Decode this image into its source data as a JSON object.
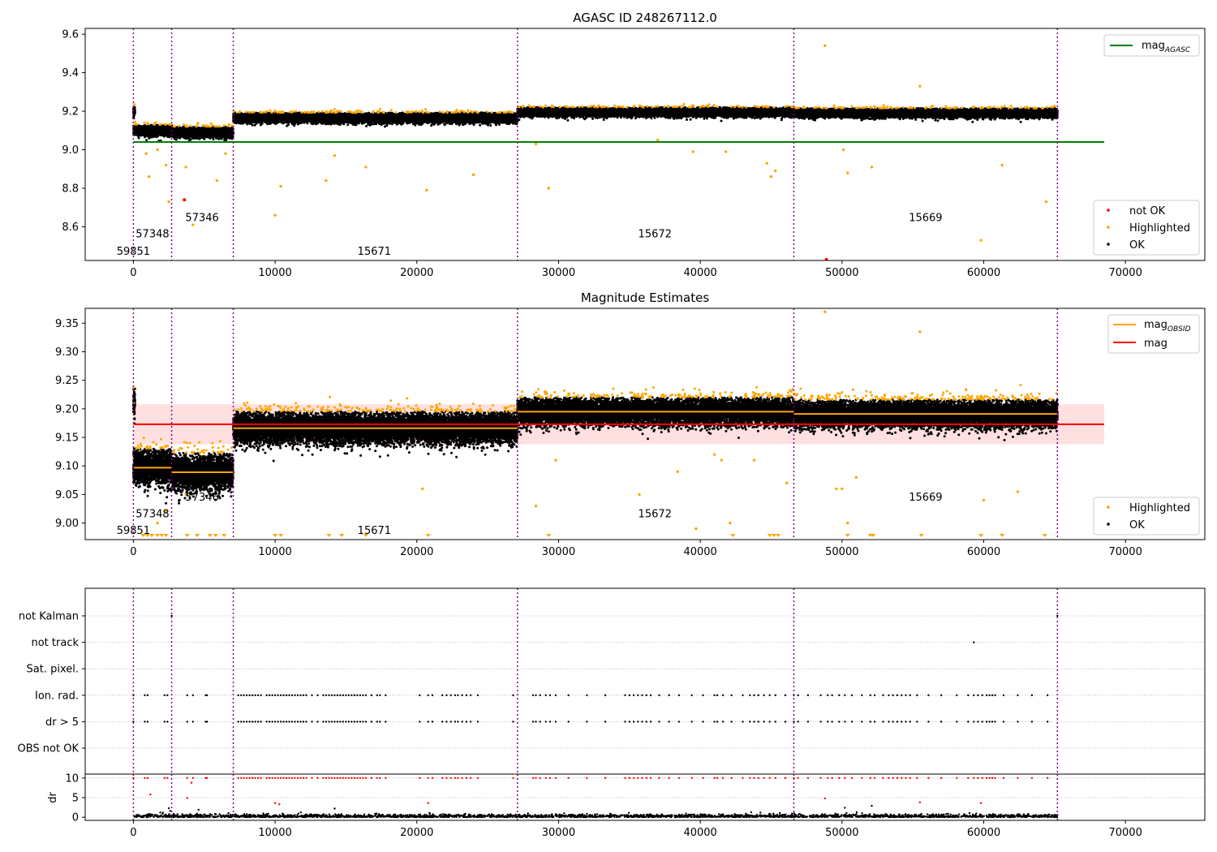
{
  "chart_data": [
    {
      "id": "top",
      "type": "scatter",
      "title": "AGASC ID 248267112.0",
      "xlim": [
        -3400,
        75600
      ],
      "ylim": [
        8.425,
        9.63
      ],
      "xticks": [
        0,
        10000,
        20000,
        30000,
        40000,
        50000,
        60000,
        70000
      ],
      "yticks": [
        8.6,
        8.8,
        9.0,
        9.2,
        9.4,
        9.6
      ],
      "ytick_labels": [
        "8.6",
        "8.8",
        "9.0",
        "9.2",
        "9.4",
        "9.6"
      ],
      "obsid_boundaries": [
        0,
        2700,
        7050,
        27100,
        46600,
        65200
      ],
      "obsid_labels": [
        {
          "text": "59851",
          "x": 0,
          "y": 8.455
        },
        {
          "text": "57348",
          "x": 1350,
          "y": 8.545
        },
        {
          "text": "57346",
          "x": 4850,
          "y": 8.63
        },
        {
          "text": "15671",
          "x": 17000,
          "y": 8.455
        },
        {
          "text": "15672",
          "x": 36800,
          "y": 8.545
        },
        {
          "text": "15669",
          "x": 55900,
          "y": 8.63
        }
      ],
      "reference_line": {
        "name": "mag",
        "subscript": "AGASC",
        "y": 9.04,
        "x": [
          0,
          68500
        ],
        "color": "#008000"
      },
      "segments": [
        {
          "x": [
            0,
            120
          ],
          "center": 9.2,
          "spread": 0.012
        },
        {
          "x": [
            0,
            2700
          ],
          "center": 9.1,
          "spread": 0.013
        },
        {
          "x": [
            2700,
            7050
          ],
          "center": 9.09,
          "spread": 0.013
        },
        {
          "x": [
            7050,
            27100
          ],
          "center": 9.165,
          "spread": 0.012
        },
        {
          "x": [
            27100,
            46600
          ],
          "center": 9.195,
          "spread": 0.011
        },
        {
          "x": [
            46600,
            65200
          ],
          "center": 9.19,
          "spread": 0.011
        }
      ],
      "not_ok": [
        {
          "x": 3600,
          "y": 8.74
        },
        {
          "x": 48900,
          "y": 8.43
        }
      ],
      "highlighted_outliers": [
        {
          "x": 900,
          "y": 8.98
        },
        {
          "x": 1100,
          "y": 8.86
        },
        {
          "x": 1700,
          "y": 9.0
        },
        {
          "x": 2300,
          "y": 8.92
        },
        {
          "x": 2500,
          "y": 8.73
        },
        {
          "x": 3700,
          "y": 8.91
        },
        {
          "x": 4200,
          "y": 8.61
        },
        {
          "x": 5900,
          "y": 8.84
        },
        {
          "x": 6500,
          "y": 8.98
        },
        {
          "x": 10000,
          "y": 8.66
        },
        {
          "x": 10400,
          "y": 8.81
        },
        {
          "x": 13600,
          "y": 8.84
        },
        {
          "x": 14200,
          "y": 8.97
        },
        {
          "x": 16400,
          "y": 8.91
        },
        {
          "x": 20700,
          "y": 8.79
        },
        {
          "x": 24000,
          "y": 8.87
        },
        {
          "x": 28400,
          "y": 9.03
        },
        {
          "x": 29300,
          "y": 8.8
        },
        {
          "x": 37000,
          "y": 9.05
        },
        {
          "x": 39500,
          "y": 8.99
        },
        {
          "x": 41800,
          "y": 8.99
        },
        {
          "x": 44700,
          "y": 8.93
        },
        {
          "x": 45000,
          "y": 8.86
        },
        {
          "x": 45300,
          "y": 8.89
        },
        {
          "x": 48800,
          "y": 9.54
        },
        {
          "x": 50100,
          "y": 9.0
        },
        {
          "x": 50400,
          "y": 8.88
        },
        {
          "x": 52100,
          "y": 8.91
        },
        {
          "x": 55500,
          "y": 9.33
        },
        {
          "x": 59800,
          "y": 8.53
        },
        {
          "x": 61300,
          "y": 8.92
        },
        {
          "x": 64400,
          "y": 8.73
        }
      ],
      "legend": {
        "top": [
          {
            "label": "mag",
            "subscript": "AGASC",
            "kind": "line",
            "color": "#008000"
          }
        ],
        "bottom": [
          {
            "label": "not OK",
            "kind": "dot",
            "color": "#ff0000"
          },
          {
            "label": "Highlighted",
            "kind": "dot",
            "color": "#ffa500"
          },
          {
            "label": "OK",
            "kind": "dot",
            "color": "#000000"
          }
        ]
      }
    },
    {
      "id": "middle",
      "type": "scatter",
      "title": "Magnitude Estimates",
      "xlim": [
        -3400,
        75600
      ],
      "ylim": [
        8.971,
        9.376
      ],
      "xticks": [
        0,
        10000,
        20000,
        30000,
        40000,
        50000,
        60000,
        70000
      ],
      "yticks": [
        9.0,
        9.05,
        9.1,
        9.15,
        9.2,
        9.25,
        9.3,
        9.35
      ],
      "ytick_labels": [
        "9.00",
        "9.05",
        "9.10",
        "9.15",
        "9.20",
        "9.25",
        "9.30",
        "9.35"
      ],
      "obsid_boundaries": [
        0,
        2700,
        7050,
        27100,
        46600,
        65200
      ],
      "obsid_labels": [
        {
          "text": "59851",
          "x": 0,
          "y": 8.981
        },
        {
          "text": "57348",
          "x": 1350,
          "y": 9.01
        },
        {
          "text": "57346",
          "x": 4850,
          "y": 9.039
        },
        {
          "text": "15671",
          "x": 17000,
          "y": 8.981
        },
        {
          "text": "15672",
          "x": 36800,
          "y": 9.01
        },
        {
          "text": "15669",
          "x": 55900,
          "y": 9.039
        }
      ],
      "mag": {
        "name": "mag",
        "y": 9.173,
        "band": [
          9.138,
          9.208
        ],
        "x": [
          0,
          68500
        ],
        "color": "#ff0000"
      },
      "segments": [
        {
          "x": [
            0,
            120
          ],
          "center": 9.21,
          "spread": 0.012,
          "mag_obsid": 9.21
        },
        {
          "x": [
            0,
            2700
          ],
          "center": 9.097,
          "spread": 0.016,
          "mag_obsid": 9.097
        },
        {
          "x": [
            2700,
            7050
          ],
          "center": 9.089,
          "spread": 0.016,
          "mag_obsid": 9.089
        },
        {
          "x": [
            7050,
            27100
          ],
          "center": 9.166,
          "spread": 0.014,
          "mag_obsid": 9.166
        },
        {
          "x": [
            27100,
            46600
          ],
          "center": 9.195,
          "spread": 0.012,
          "mag_obsid": 9.195
        },
        {
          "x": [
            46600,
            65200
          ],
          "center": 9.191,
          "spread": 0.012,
          "mag_obsid": 9.191
        }
      ],
      "highlighted_outliers": [
        {
          "x": 1700,
          "y": 9.0
        },
        {
          "x": 2300,
          "y": 9.02
        },
        {
          "x": 3700,
          "y": 9.05
        },
        {
          "x": 20400,
          "y": 9.06
        },
        {
          "x": 28400,
          "y": 9.03
        },
        {
          "x": 29800,
          "y": 9.11
        },
        {
          "x": 35700,
          "y": 9.05
        },
        {
          "x": 38400,
          "y": 9.09
        },
        {
          "x": 39700,
          "y": 8.99
        },
        {
          "x": 41000,
          "y": 9.12
        },
        {
          "x": 41500,
          "y": 9.11
        },
        {
          "x": 42100,
          "y": 9.0
        },
        {
          "x": 43800,
          "y": 9.11
        },
        {
          "x": 46100,
          "y": 9.07
        },
        {
          "x": 48800,
          "y": 9.37
        },
        {
          "x": 49600,
          "y": 9.06
        },
        {
          "x": 50000,
          "y": 9.06
        },
        {
          "x": 50400,
          "y": 9.0
        },
        {
          "x": 51000,
          "y": 9.08
        },
        {
          "x": 55500,
          "y": 9.335
        },
        {
          "x": 60000,
          "y": 9.04
        },
        {
          "x": 62400,
          "y": 9.055
        }
      ],
      "clipped_low_markers": [
        700,
        1000,
        1300,
        1700,
        2000,
        2300,
        3800,
        4500,
        5400,
        5800,
        6400,
        10000,
        10400,
        13800,
        14700,
        16400,
        20800,
        29300,
        42300,
        44900,
        45200,
        45500,
        50400,
        52000,
        52200,
        55600,
        59800,
        61300,
        64300
      ],
      "legend": {
        "top": [
          {
            "label": "mag",
            "subscript": "OBSID",
            "kind": "line",
            "color": "#ffa500"
          },
          {
            "label": "mag",
            "kind": "line",
            "color": "#ff0000"
          }
        ],
        "bottom": [
          {
            "label": "Highlighted",
            "kind": "dot",
            "color": "#ffa500"
          },
          {
            "label": "OK",
            "kind": "dot",
            "color": "#000000"
          }
        ]
      }
    },
    {
      "id": "flags",
      "type": "scatter",
      "xlim": [
        -3400,
        75600
      ],
      "categories": [
        "OBS not OK",
        "dr > 5",
        "Ion. rad.",
        "Sat. pixel.",
        "not track",
        "not Kalman"
      ],
      "obsid_boundaries": [
        0,
        2700,
        7050,
        27100,
        46600,
        65200
      ],
      "flag_points": {
        "not track": [
          59300
        ],
        "not Kalman": [
          2700,
          65200
        ],
        "dr > 5": [
          0,
          800,
          1000,
          2200,
          2400,
          3800,
          4200,
          5100,
          5200,
          7400,
          7600,
          7800,
          8000,
          8200,
          8400,
          8600,
          8800,
          9000,
          9400,
          9600,
          9800,
          10000,
          10200,
          10400,
          10600,
          10800,
          11000,
          11200,
          11400,
          11600,
          11800,
          12000,
          12200,
          12600,
          13000,
          13400,
          13600,
          13800,
          14000,
          14200,
          14400,
          14600,
          14800,
          15000,
          15200,
          15400,
          15600,
          15800,
          16000,
          16200,
          16400,
          16800,
          17200,
          17400,
          17800,
          20200,
          20800,
          21100,
          21800,
          22100,
          22400,
          22700,
          22900,
          23200,
          23500,
          23800,
          24300,
          26800,
          28200,
          28400,
          28700,
          29100,
          29400,
          29800,
          30700,
          32000,
          33300,
          34700,
          35000,
          35300,
          35600,
          35900,
          36200,
          36500,
          37100,
          37800,
          38500,
          39400,
          40200,
          41000,
          41200,
          41600,
          42200,
          43000,
          43500,
          43800,
          44100,
          44500,
          44900,
          45300,
          46000,
          46600,
          46900,
          47600,
          48500,
          49000,
          49300,
          49800,
          50200,
          50700,
          51400,
          52000,
          52300,
          52900,
          53300,
          53600,
          53900,
          54200,
          54500,
          54800,
          55300,
          56100,
          57000,
          58100,
          58900,
          59300,
          59600,
          59900,
          60200,
          60400,
          60600,
          60800,
          61400,
          62400,
          63400,
          64500
        ],
        "Ion. rad.": [
          0,
          800,
          1000,
          2200,
          2400,
          3800,
          4200,
          5100,
          5200,
          7400,
          7600,
          7800,
          8000,
          8200,
          8400,
          8600,
          8800,
          9000,
          9400,
          9600,
          9800,
          10000,
          10200,
          10400,
          10600,
          10800,
          11000,
          11200,
          11400,
          11600,
          11800,
          12000,
          12200,
          12600,
          13000,
          13400,
          13600,
          13800,
          14000,
          14200,
          14400,
          14600,
          14800,
          15000,
          15200,
          15400,
          15600,
          15800,
          16000,
          16200,
          16400,
          16800,
          17200,
          17400,
          17800,
          20200,
          20800,
          21100,
          21800,
          22100,
          22400,
          22700,
          22900,
          23200,
          23500,
          23800,
          24300,
          26800,
          28200,
          28400,
          28700,
          29100,
          29400,
          29800,
          30700,
          32000,
          33300,
          34700,
          35000,
          35300,
          35600,
          35900,
          36200,
          36500,
          37100,
          37800,
          38500,
          39400,
          40200,
          41000,
          41200,
          41600,
          42200,
          43000,
          43500,
          43800,
          44100,
          44500,
          44900,
          45300,
          46000,
          46600,
          46900,
          47600,
          48500,
          49000,
          49300,
          49800,
          50200,
          50700,
          51400,
          52000,
          52300,
          52900,
          53300,
          53600,
          53900,
          54200,
          54500,
          54800,
          55300,
          56100,
          57000,
          58100,
          58900,
          59300,
          59600,
          59900,
          60200,
          60400,
          60600,
          60800,
          61400,
          62400,
          63400,
          64500
        ]
      }
    },
    {
      "id": "dr",
      "type": "scatter",
      "ylabel": "dr",
      "xlim": [
        -3400,
        75600
      ],
      "ylim": [
        -0.8,
        11
      ],
      "yticks": [
        0,
        5,
        10
      ],
      "xticks": [
        0,
        10000,
        20000,
        30000,
        40000,
        50000,
        60000,
        70000
      ],
      "x_range": [
        0,
        65200
      ],
      "baseline_spread": 0.8,
      "scattered_dr": [
        {
          "x": 1200,
          "y": 5.8
        },
        {
          "x": 2500,
          "y": 2.3
        },
        {
          "x": 3800,
          "y": 4.9
        },
        {
          "x": 4100,
          "y": 8.8
        },
        {
          "x": 4600,
          "y": 1.9
        },
        {
          "x": 10000,
          "y": 3.6
        },
        {
          "x": 10300,
          "y": 3.3
        },
        {
          "x": 14200,
          "y": 2.2
        },
        {
          "x": 20800,
          "y": 3.6
        },
        {
          "x": 48800,
          "y": 4.8
        },
        {
          "x": 50200,
          "y": 2.4
        },
        {
          "x": 52100,
          "y": 2.9
        },
        {
          "x": 55500,
          "y": 3.8
        },
        {
          "x": 59800,
          "y": 3.6
        },
        {
          "x": 2600,
          "y": 1.6
        },
        {
          "x": 1900,
          "y": 1.2
        }
      ]
    }
  ]
}
